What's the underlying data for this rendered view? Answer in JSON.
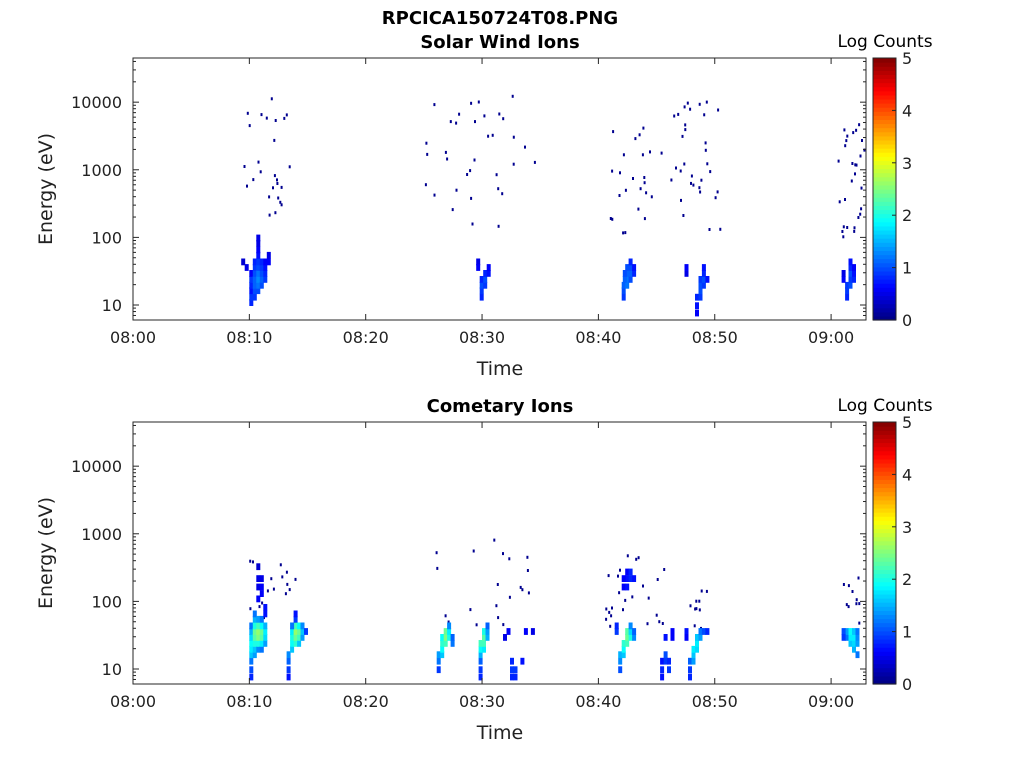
{
  "figure_title": "RPCICA150724T08.PNG",
  "colorbar_ticks": [
    "0",
    "1",
    "2",
    "3",
    "4",
    "5"
  ],
  "chart_data": [
    {
      "type": "heatmap",
      "title": "Solar Wind Ions",
      "xlabel": "Time",
      "ylabel": "Energy (eV)",
      "colorbar_label": "Log Counts",
      "y_scale": "log",
      "ylim": [
        6,
        45000
      ],
      "xlim": [
        "08:00",
        "09:03"
      ],
      "xticks": [
        "08:00",
        "08:10",
        "08:20",
        "08:30",
        "08:40",
        "08:50",
        "09:00"
      ],
      "yticks": [
        "10",
        "100",
        "1000",
        "10000"
      ],
      "clim": [
        0,
        5
      ],
      "colormap": "jet",
      "cells": [
        [
          10.0,
          10,
          0.8
        ],
        [
          10.0,
          12,
          0.9
        ],
        [
          10.0,
          15,
          0.7
        ],
        [
          10.0,
          18,
          0.8
        ],
        [
          10.0,
          22,
          0.9
        ],
        [
          10.0,
          27,
          0.6
        ],
        [
          10.3,
          12,
          0.9
        ],
        [
          10.3,
          15,
          1.0
        ],
        [
          10.3,
          18,
          1.1
        ],
        [
          10.3,
          22,
          1.1
        ],
        [
          10.3,
          27,
          1.0
        ],
        [
          10.3,
          33,
          0.9
        ],
        [
          10.3,
          40,
          0.8
        ],
        [
          10.6,
          15,
          1.0
        ],
        [
          10.6,
          18,
          1.2
        ],
        [
          10.6,
          22,
          1.3
        ],
        [
          10.6,
          27,
          1.2
        ],
        [
          10.6,
          33,
          1.0
        ],
        [
          10.6,
          40,
          0.9
        ],
        [
          10.6,
          50,
          0.7
        ],
        [
          10.6,
          60,
          0.6
        ],
        [
          10.6,
          75,
          0.5
        ],
        [
          10.6,
          90,
          0.5
        ],
        [
          10.9,
          18,
          1.0
        ],
        [
          10.9,
          22,
          1.1
        ],
        [
          10.9,
          27,
          1.0
        ],
        [
          10.9,
          33,
          0.9
        ],
        [
          10.9,
          40,
          0.8
        ],
        [
          11.2,
          22,
          0.9
        ],
        [
          11.2,
          27,
          0.8
        ],
        [
          11.2,
          33,
          0.7
        ],
        [
          11.2,
          40,
          0.6
        ],
        [
          11.5,
          40,
          0.6
        ],
        [
          11.5,
          50,
          0.5
        ],
        [
          9.6,
          33,
          0.5
        ],
        [
          9.3,
          40,
          0.4
        ],
        [
          29.8,
          12,
          0.8
        ],
        [
          29.8,
          15,
          0.9
        ],
        [
          29.8,
          18,
          1.0
        ],
        [
          29.8,
          22,
          0.8
        ],
        [
          30.1,
          18,
          0.9
        ],
        [
          30.1,
          22,
          1.0
        ],
        [
          30.1,
          27,
          0.8
        ],
        [
          30.4,
          27,
          0.7
        ],
        [
          30.4,
          33,
          0.6
        ],
        [
          29.5,
          40,
          0.5
        ],
        [
          29.5,
          33,
          0.6
        ],
        [
          42.0,
          12,
          0.9
        ],
        [
          42.0,
          15,
          1.0
        ],
        [
          42.0,
          18,
          1.1
        ],
        [
          42.3,
          18,
          1.2
        ],
        [
          42.3,
          22,
          1.2
        ],
        [
          42.3,
          27,
          1.1
        ],
        [
          42.3,
          33,
          1.0
        ],
        [
          42.6,
          22,
          1.0
        ],
        [
          42.6,
          27,
          1.1
        ],
        [
          42.6,
          33,
          1.0
        ],
        [
          42.6,
          40,
          0.8
        ],
        [
          42.9,
          27,
          0.8
        ],
        [
          42.9,
          33,
          0.7
        ],
        [
          42.1,
          22,
          1.1
        ],
        [
          42.1,
          27,
          1.0
        ],
        [
          48.3,
          7,
          0.6
        ],
        [
          48.3,
          9,
          0.7
        ],
        [
          48.3,
          12,
          0.8
        ],
        [
          48.6,
          12,
          0.9
        ],
        [
          48.6,
          15,
          1.0
        ],
        [
          48.6,
          18,
          1.0
        ],
        [
          48.6,
          22,
          0.9
        ],
        [
          48.9,
          18,
          0.9
        ],
        [
          48.9,
          22,
          1.0
        ],
        [
          48.9,
          27,
          0.8
        ],
        [
          48.9,
          33,
          0.7
        ],
        [
          49.2,
          22,
          0.7
        ],
        [
          47.4,
          27,
          0.5
        ],
        [
          47.4,
          33,
          0.6
        ],
        [
          61.2,
          12,
          0.8
        ],
        [
          61.2,
          15,
          0.9
        ],
        [
          61.2,
          18,
          0.9
        ],
        [
          61.5,
          18,
          1.0
        ],
        [
          61.5,
          22,
          0.9
        ],
        [
          61.5,
          27,
          1.0
        ],
        [
          61.5,
          33,
          0.8
        ],
        [
          61.5,
          40,
          0.7
        ],
        [
          61.8,
          22,
          0.8
        ],
        [
          61.8,
          27,
          0.7
        ],
        [
          61.8,
          33,
          0.6
        ],
        [
          60.9,
          22,
          0.6
        ],
        [
          60.9,
          27,
          0.5
        ]
      ],
      "scatter_ranges": [
        {
          "x": [
            9.0,
            13.5
          ],
          "y": [
            150,
            12000
          ],
          "n": 26
        },
        {
          "x": [
            25.0,
            34.5
          ],
          "y": [
            150,
            13000
          ],
          "n": 34
        },
        {
          "x": [
            40.5,
            45.5
          ],
          "y": [
            120,
            6000
          ],
          "n": 24
        },
        {
          "x": [
            46.0,
            50.5
          ],
          "y": [
            120,
            11000
          ],
          "n": 32
        },
        {
          "x": [
            60.5,
            63.0
          ],
          "y": [
            90,
            6000
          ],
          "n": 28
        }
      ]
    },
    {
      "type": "heatmap",
      "title": "Cometary Ions",
      "xlabel": "Time",
      "ylabel": "Energy (eV)",
      "colorbar_label": "Log Counts",
      "y_scale": "log",
      "ylim": [
        6,
        45000
      ],
      "xlim": [
        "08:00",
        "09:03"
      ],
      "xticks": [
        "08:00",
        "08:10",
        "08:20",
        "08:30",
        "08:40",
        "08:50",
        "09:00"
      ],
      "yticks": [
        "10",
        "100",
        "1000",
        "10000"
      ],
      "clim": [
        0,
        5
      ],
      "colormap": "jet",
      "cells": [
        [
          10.0,
          7,
          0.8
        ],
        [
          10.0,
          9,
          1.0
        ],
        [
          10.0,
          12,
          1.2
        ],
        [
          10.0,
          15,
          1.6
        ],
        [
          10.0,
          18,
          1.8
        ],
        [
          10.0,
          22,
          1.9
        ],
        [
          10.0,
          27,
          1.7
        ],
        [
          10.0,
          33,
          1.5
        ],
        [
          10.0,
          40,
          1.2
        ],
        [
          10.3,
          15,
          1.4
        ],
        [
          10.3,
          18,
          1.6
        ],
        [
          10.3,
          22,
          2.0
        ],
        [
          10.3,
          27,
          2.3
        ],
        [
          10.3,
          33,
          2.4
        ],
        [
          10.3,
          40,
          2.0
        ],
        [
          10.3,
          50,
          1.5
        ],
        [
          10.3,
          60,
          1.2
        ],
        [
          10.6,
          18,
          1.3
        ],
        [
          10.6,
          22,
          2.0
        ],
        [
          10.6,
          27,
          2.5
        ],
        [
          10.6,
          33,
          2.6
        ],
        [
          10.6,
          40,
          2.2
        ],
        [
          10.6,
          50,
          1.4
        ],
        [
          10.9,
          18,
          1.2
        ],
        [
          10.9,
          22,
          1.8
        ],
        [
          10.9,
          27,
          2.3
        ],
        [
          10.9,
          33,
          2.4
        ],
        [
          10.9,
          40,
          1.9
        ],
        [
          10.9,
          50,
          1.2
        ],
        [
          11.2,
          22,
          1.4
        ],
        [
          11.2,
          27,
          1.7
        ],
        [
          11.2,
          33,
          1.8
        ],
        [
          11.2,
          40,
          1.5
        ],
        [
          10.6,
          100,
          0.6
        ],
        [
          10.6,
          150,
          0.5
        ],
        [
          10.6,
          200,
          0.5
        ],
        [
          10.6,
          300,
          0.4
        ],
        [
          10.9,
          150,
          0.6
        ],
        [
          10.9,
          200,
          0.5
        ],
        [
          10.9,
          120,
          0.6
        ],
        [
          11.2,
          75,
          0.7
        ],
        [
          11.2,
          60,
          0.7
        ],
        [
          13.2,
          7,
          0.7
        ],
        [
          13.2,
          9,
          0.9
        ],
        [
          13.2,
          12,
          1.1
        ],
        [
          13.2,
          15,
          1.3
        ],
        [
          13.5,
          18,
          1.6
        ],
        [
          13.5,
          22,
          1.9
        ],
        [
          13.5,
          27,
          2.0
        ],
        [
          13.5,
          33,
          1.8
        ],
        [
          13.8,
          22,
          2.1
        ],
        [
          13.8,
          27,
          2.4
        ],
        [
          13.8,
          33,
          2.6
        ],
        [
          13.8,
          40,
          2.2
        ],
        [
          14.1,
          22,
          1.6
        ],
        [
          14.1,
          27,
          2.2
        ],
        [
          14.1,
          33,
          2.4
        ],
        [
          14.1,
          40,
          1.9
        ],
        [
          14.4,
          27,
          1.4
        ],
        [
          14.4,
          33,
          1.6
        ],
        [
          14.4,
          40,
          1.3
        ],
        [
          14.7,
          33,
          0.9
        ],
        [
          13.5,
          40,
          1.2
        ],
        [
          13.8,
          50,
          0.9
        ],
        [
          13.8,
          60,
          0.7
        ],
        [
          26.1,
          9,
          0.9
        ],
        [
          26.1,
          12,
          1.2
        ],
        [
          26.1,
          15,
          1.4
        ],
        [
          26.4,
          15,
          1.6
        ],
        [
          26.4,
          18,
          1.9
        ],
        [
          26.4,
          22,
          2.1
        ],
        [
          26.4,
          27,
          1.9
        ],
        [
          26.7,
          22,
          2.2
        ],
        [
          26.7,
          27,
          2.5
        ],
        [
          26.7,
          33,
          2.4
        ],
        [
          27.0,
          27,
          2.0
        ],
        [
          27.0,
          33,
          1.8
        ],
        [
          27.0,
          40,
          1.3
        ],
        [
          27.3,
          22,
          1.2
        ],
        [
          27.3,
          27,
          1.1
        ],
        [
          29.7,
          12,
          1.1
        ],
        [
          29.7,
          15,
          1.5
        ],
        [
          29.7,
          18,
          1.9
        ],
        [
          29.7,
          22,
          2.2
        ],
        [
          30.0,
          18,
          1.8
        ],
        [
          30.0,
          22,
          2.2
        ],
        [
          30.0,
          27,
          2.3
        ],
        [
          30.0,
          33,
          2.0
        ],
        [
          30.3,
          27,
          1.5
        ],
        [
          30.3,
          33,
          1.4
        ],
        [
          30.3,
          40,
          1.1
        ],
        [
          29.7,
          7,
          0.8
        ],
        [
          29.7,
          9,
          0.9
        ],
        [
          32.4,
          7,
          0.8
        ],
        [
          32.4,
          9,
          0.9
        ],
        [
          32.4,
          12,
          0.8
        ],
        [
          32.7,
          7,
          0.8
        ],
        [
          32.7,
          9,
          0.9
        ],
        [
          33.3,
          12,
          0.7
        ],
        [
          31.8,
          27,
          0.5
        ],
        [
          32.1,
          33,
          0.6
        ],
        [
          33.6,
          33,
          0.6
        ],
        [
          34.2,
          33,
          0.5
        ],
        [
          41.7,
          9,
          1.0
        ],
        [
          41.7,
          12,
          1.3
        ],
        [
          41.7,
          15,
          1.5
        ],
        [
          42.0,
          15,
          1.6
        ],
        [
          42.0,
          18,
          1.9
        ],
        [
          42.0,
          22,
          2.1
        ],
        [
          42.3,
          22,
          2.2
        ],
        [
          42.3,
          27,
          2.4
        ],
        [
          42.3,
          33,
          2.3
        ],
        [
          42.6,
          27,
          2.0
        ],
        [
          42.6,
          33,
          1.7
        ],
        [
          42.6,
          40,
          1.3
        ],
        [
          42.9,
          27,
          1.3
        ],
        [
          42.9,
          33,
          1.1
        ],
        [
          41.4,
          33,
          0.9
        ],
        [
          41.4,
          40,
          0.8
        ],
        [
          42.3,
          200,
          0.7
        ],
        [
          42.3,
          250,
          0.6
        ],
        [
          42.6,
          200,
          0.8
        ],
        [
          42.6,
          250,
          0.8
        ],
        [
          42.0,
          200,
          0.6
        ],
        [
          42.9,
          200,
          0.7
        ],
        [
          42.0,
          150,
          0.6
        ],
        [
          42.3,
          150,
          0.7
        ],
        [
          45.3,
          7,
          0.7
        ],
        [
          45.3,
          9,
          0.8
        ],
        [
          45.3,
          12,
          0.7
        ],
        [
          45.6,
          12,
          0.9
        ],
        [
          45.6,
          15,
          1.0
        ],
        [
          45.9,
          9,
          0.9
        ],
        [
          45.9,
          12,
          0.8
        ],
        [
          46.2,
          33,
          0.6
        ],
        [
          45.6,
          27,
          0.7
        ],
        [
          46.2,
          27,
          0.6
        ],
        [
          47.7,
          7,
          0.8
        ],
        [
          47.7,
          9,
          0.9
        ],
        [
          47.7,
          12,
          1.1
        ],
        [
          48.0,
          12,
          1.4
        ],
        [
          48.0,
          15,
          1.6
        ],
        [
          48.0,
          18,
          1.8
        ],
        [
          48.3,
          18,
          1.7
        ],
        [
          48.3,
          22,
          1.8
        ],
        [
          48.3,
          27,
          1.6
        ],
        [
          48.6,
          27,
          1.4
        ],
        [
          48.6,
          33,
          1.2
        ],
        [
          48.9,
          33,
          1.0
        ],
        [
          49.2,
          33,
          0.8
        ],
        [
          47.4,
          33,
          0.7
        ],
        [
          47.4,
          27,
          0.6
        ],
        [
          61.2,
          27,
          1.2
        ],
        [
          61.2,
          33,
          1.4
        ],
        [
          61.5,
          22,
          1.6
        ],
        [
          61.5,
          27,
          1.8
        ],
        [
          61.5,
          33,
          1.9
        ],
        [
          61.8,
          18,
          1.5
        ],
        [
          61.8,
          22,
          1.7
        ],
        [
          61.8,
          27,
          1.8
        ],
        [
          61.8,
          33,
          1.6
        ],
        [
          62.1,
          15,
          1.2
        ],
        [
          62.1,
          22,
          1.4
        ],
        [
          62.1,
          27,
          1.3
        ],
        [
          62.1,
          33,
          1.2
        ],
        [
          60.9,
          33,
          1.0
        ],
        [
          60.9,
          27,
          0.9
        ]
      ],
      "scatter_ranges": [
        {
          "x": [
            9.8,
            14.0
          ],
          "y": [
            60,
            420
          ],
          "n": 16
        },
        {
          "x": [
            25.8,
            34.0
          ],
          "y": [
            40,
            900
          ],
          "n": 20
        },
        {
          "x": [
            40.5,
            46.0
          ],
          "y": [
            40,
            550
          ],
          "n": 24
        },
        {
          "x": [
            47.5,
            49.8
          ],
          "y": [
            40,
            180
          ],
          "n": 10
        },
        {
          "x": [
            60.8,
            62.4
          ],
          "y": [
            40,
            250
          ],
          "n": 10
        }
      ]
    }
  ]
}
